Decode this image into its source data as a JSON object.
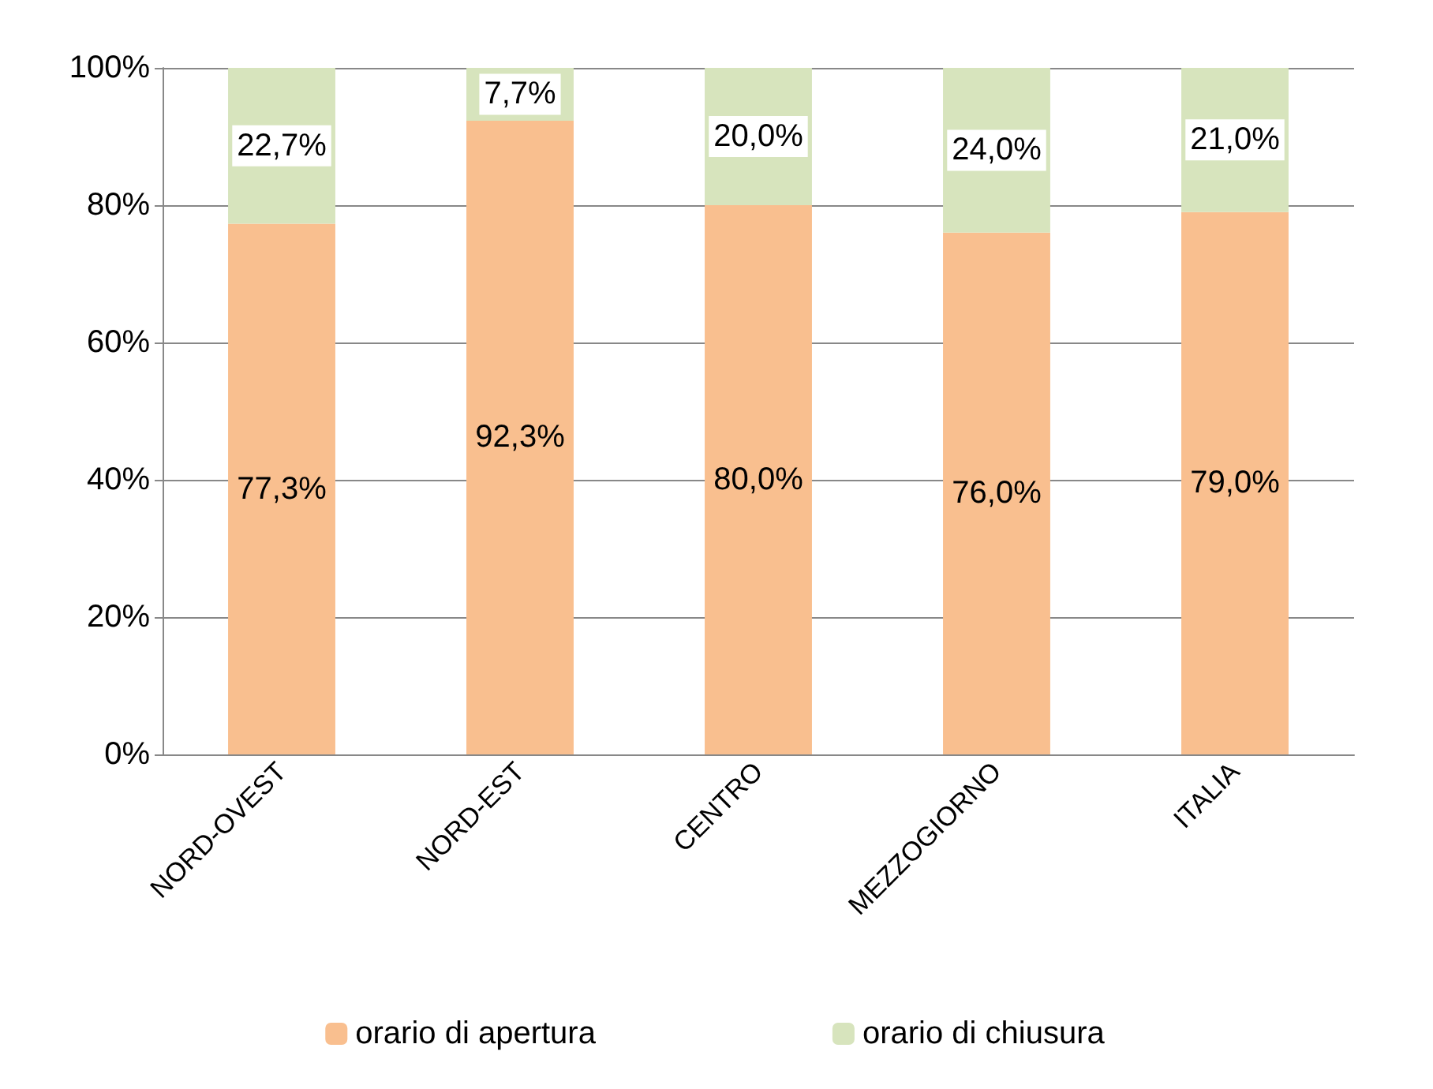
{
  "chart_data": {
    "type": "bar",
    "stacked": true,
    "categories": [
      "NORD-OVEST",
      "NORD-EST",
      "CENTRO",
      "MEZZOGIORNO",
      "ITALIA"
    ],
    "series": [
      {
        "name": "orario di apertura",
        "color": "#f9bf8f",
        "values": [
          77.3,
          92.3,
          80.0,
          76.0,
          79.0
        ],
        "value_labels": [
          "77,3%",
          "92,3%",
          "80,0%",
          "76,0%",
          "79,0%"
        ]
      },
      {
        "name": "orario di chiusura",
        "color": "#d7e4bd",
        "values": [
          22.7,
          7.7,
          20.0,
          24.0,
          21.0
        ],
        "value_labels": [
          "22,7%",
          "7,7%",
          "20,0%",
          "24,0%",
          "21,0%"
        ]
      }
    ],
    "ylim": [
      0,
      100
    ],
    "yticks": [
      {
        "value": 0,
        "label": "0%"
      },
      {
        "value": 20,
        "label": "20%"
      },
      {
        "value": 40,
        "label": "40%"
      },
      {
        "value": 60,
        "label": "60%"
      },
      {
        "value": 80,
        "label": "80%"
      },
      {
        "value": 100,
        "label": "100%"
      }
    ],
    "grid": "y",
    "legend": "bottom"
  }
}
